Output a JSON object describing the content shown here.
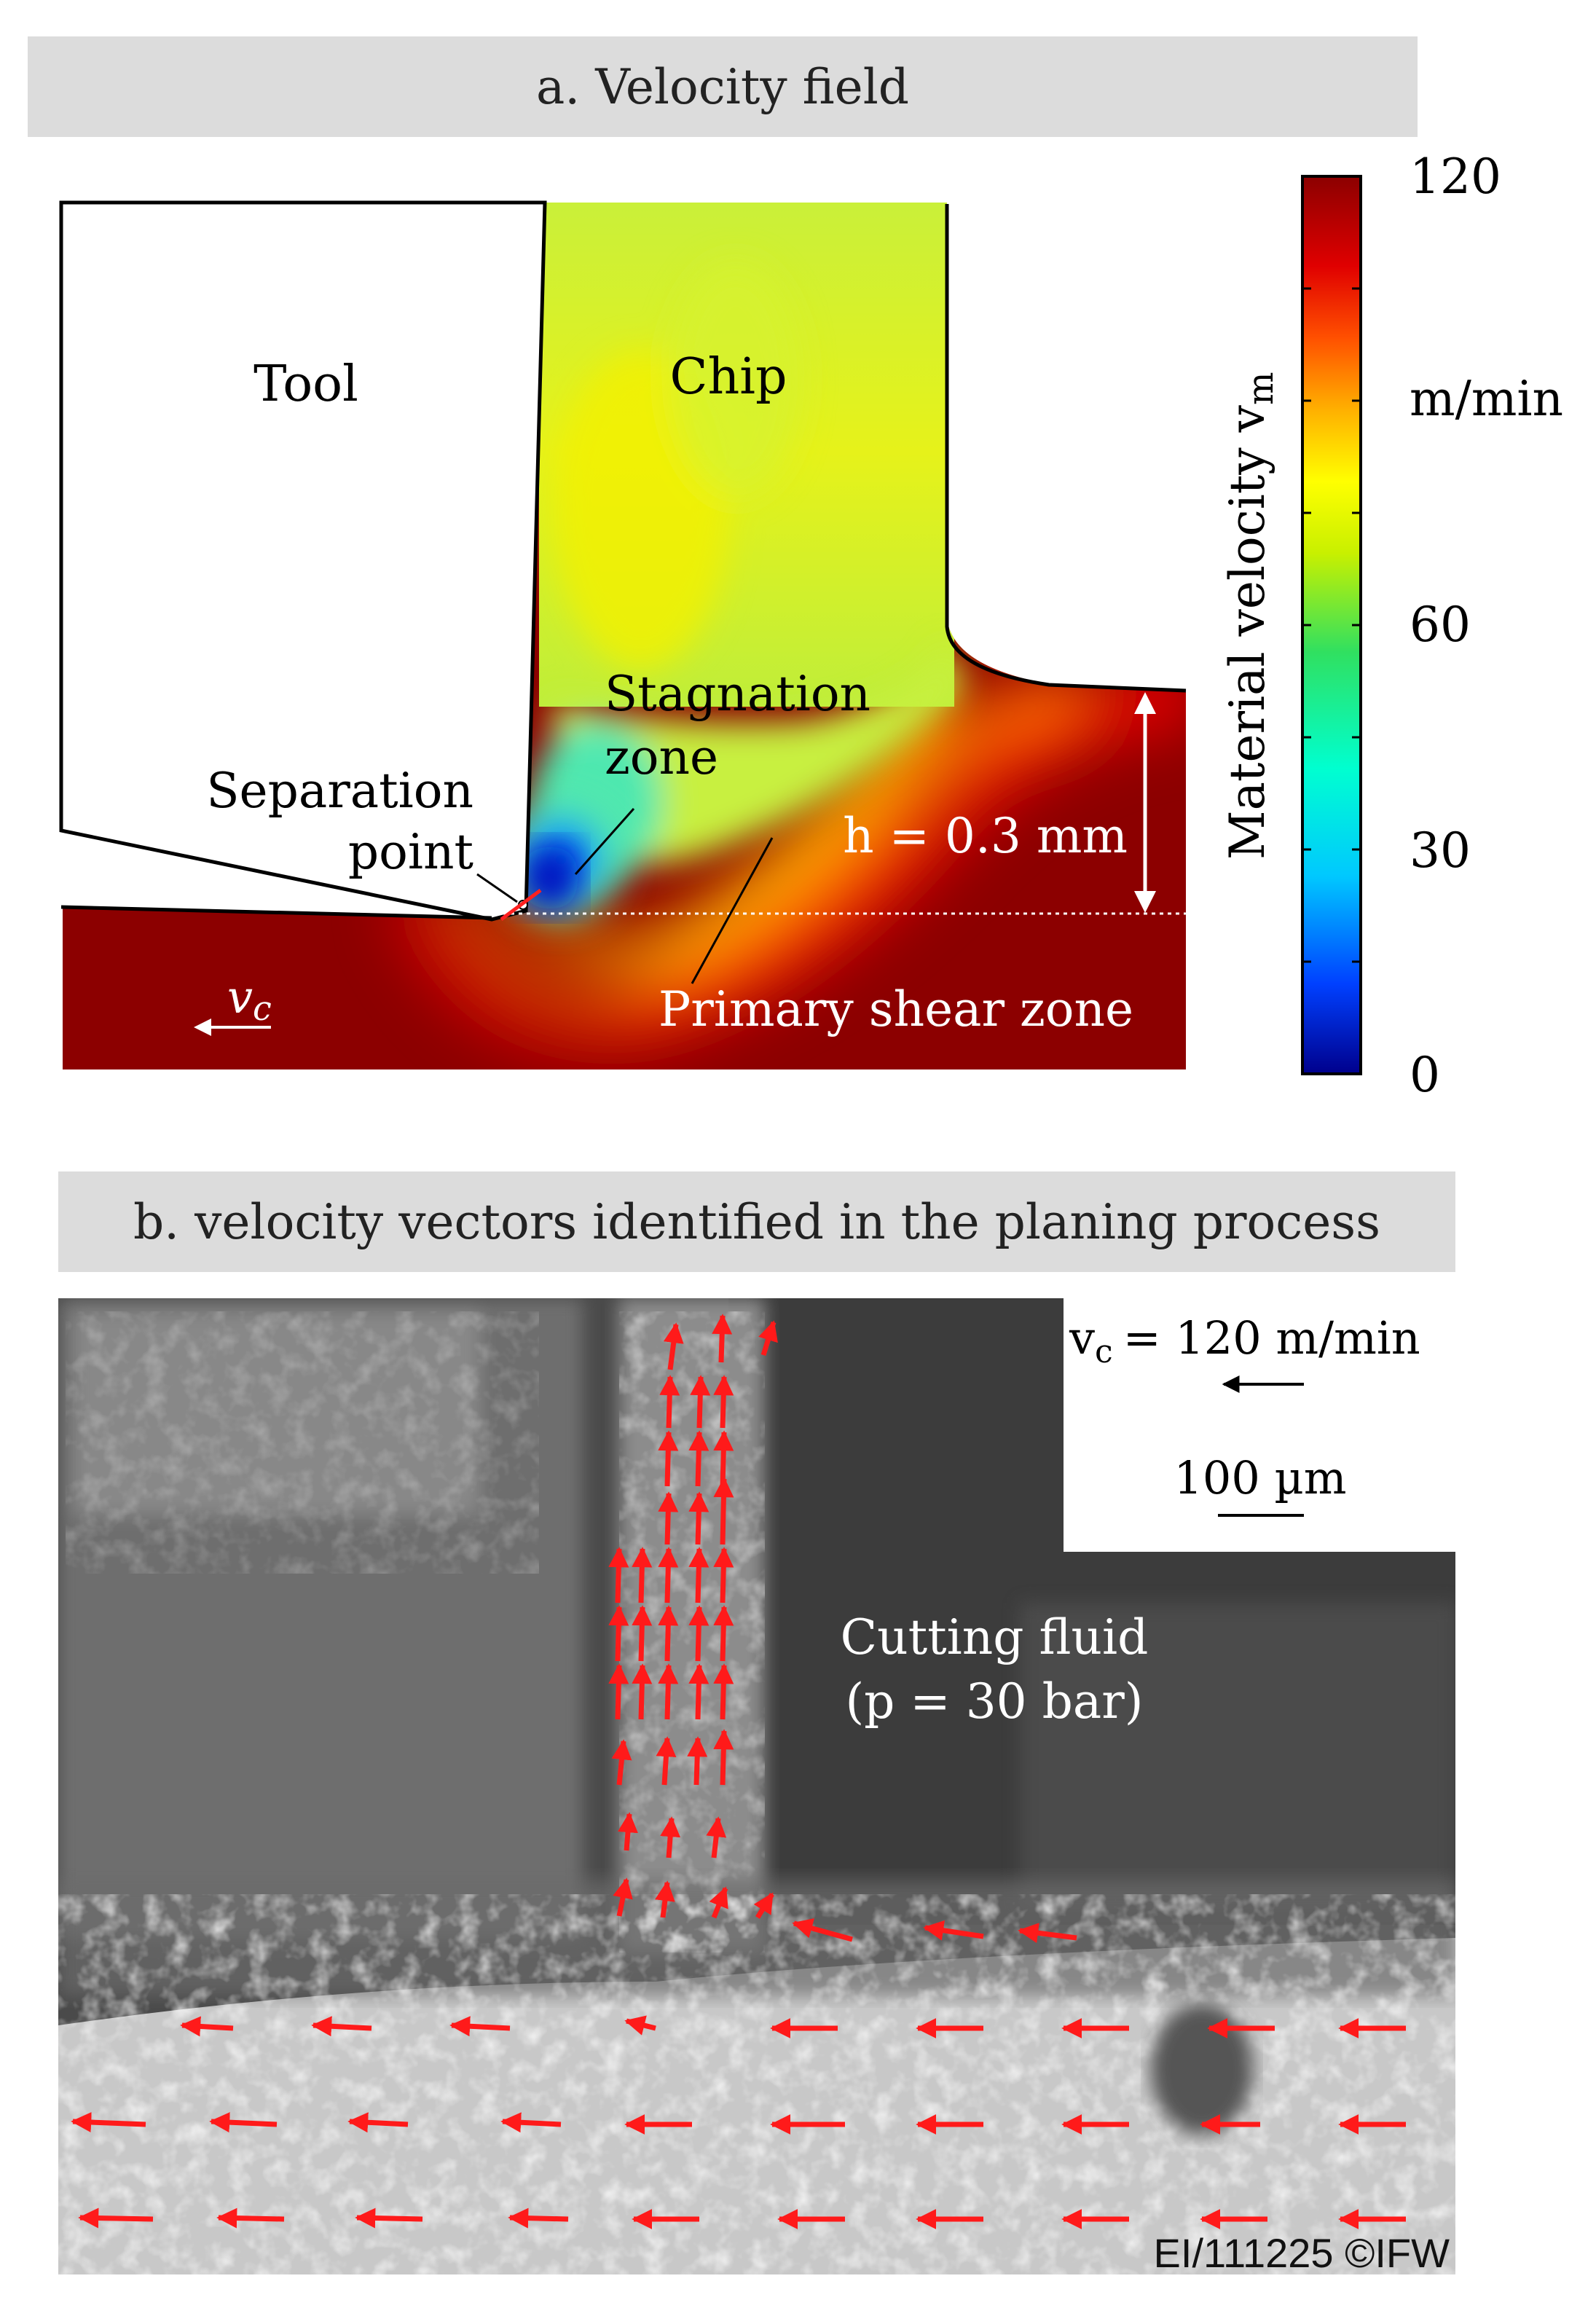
{
  "panel_a": {
    "title": "a. Velocity field",
    "labels": {
      "tool": "Tool",
      "chip": "Chip",
      "stagnation_line1": "Stagnation",
      "stagnation_line2": "zone",
      "separation_line1": "Separation",
      "separation_line2": "point",
      "thickness": "h = 0.3 mm",
      "primary_shear": "Primary shear zone",
      "cutting_velocity": "v",
      "cutting_velocity_sub": "c"
    },
    "colorbar": {
      "axis_label": "Material velocity v",
      "axis_label_sub": "m",
      "unit": "m/min",
      "ticks": [
        "120",
        "60",
        "30",
        "0"
      ],
      "min": 0,
      "max": 120,
      "colors": [
        "#00008c",
        "#0040ff",
        "#00c8ff",
        "#00ffd0",
        "#30e060",
        "#c8f000",
        "#ffff00",
        "#ffb000",
        "#ff5000",
        "#e00000",
        "#8c0000"
      ]
    }
  },
  "panel_b": {
    "title": "b. velocity vectors identified in the planing process",
    "velocity_label": "v",
    "velocity_sub": "c",
    "velocity_value": "= 120 m/min",
    "scale_label": "100 µm",
    "fluid_line1": "Cutting fluid",
    "fluid_line2": "(p = 30 bar)",
    "copyright": "EI/111225 ©IFW",
    "vector_color": "#ff1a1a"
  }
}
